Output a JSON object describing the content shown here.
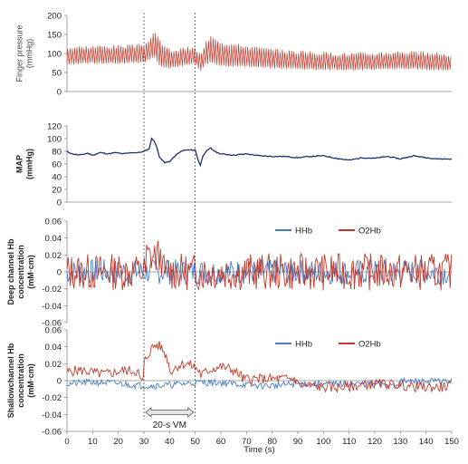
{
  "chart_data": [
    {
      "type": "line",
      "panel": "finger-pressure",
      "ylabel_lines": [
        "Finger pressure",
        "(mmHg)"
      ],
      "ylim": [
        0,
        200
      ],
      "yticks": [
        "200",
        "150",
        "100",
        "50",
        "0"
      ],
      "xlim": [
        0,
        150
      ],
      "color": "#c0392b",
      "series": [
        {
          "name": "",
          "x": [
            0,
            10,
            20,
            28,
            30,
            32,
            34,
            36,
            38,
            40,
            44,
            48,
            50,
            52,
            54,
            56,
            60,
            70,
            80,
            90,
            100,
            110,
            120,
            130,
            140,
            150
          ],
          "sys": [
            115,
            118,
            118,
            120,
            125,
            135,
            160,
            130,
            115,
            108,
            110,
            115,
            110,
            95,
            130,
            148,
            128,
            118,
            108,
            104,
            100,
            98,
            100,
            104,
            100,
            96
          ],
          "dia": [
            70,
            75,
            74,
            76,
            78,
            82,
            90,
            70,
            62,
            62,
            66,
            72,
            74,
            52,
            70,
            78,
            68,
            66,
            62,
            60,
            58,
            57,
            58,
            60,
            58,
            56
          ]
        }
      ]
    },
    {
      "type": "line",
      "panel": "map",
      "ylabel_lines": [
        "MAP",
        "(mmHg)"
      ],
      "ylim": [
        0,
        120
      ],
      "yticks": [
        "120",
        "100",
        "80",
        "60",
        "40",
        "20",
        "0"
      ],
      "xlim": [
        0,
        150
      ],
      "color": "#1f2f6e",
      "series": [
        {
          "name": "",
          "x": [
            0,
            2,
            5,
            8,
            10,
            13,
            16,
            19,
            22,
            25,
            28,
            30,
            32,
            33,
            34,
            35,
            36,
            38,
            40,
            42,
            44,
            46,
            48,
            50,
            51,
            52,
            53,
            54,
            56,
            58,
            60,
            65,
            70,
            75,
            80,
            85,
            90,
            95,
            100,
            105,
            110,
            115,
            120,
            125,
            130,
            135,
            140,
            145,
            150
          ],
          "y": [
            80,
            76,
            74,
            77,
            74,
            78,
            76,
            78,
            76,
            78,
            78,
            80,
            84,
            100,
            97,
            86,
            72,
            62,
            64,
            72,
            79,
            82,
            82,
            82,
            68,
            58,
            73,
            79,
            85,
            79,
            76,
            74,
            76,
            73,
            72,
            72,
            70,
            72,
            73,
            69,
            66,
            70,
            69,
            72,
            68,
            73,
            70,
            68,
            68
          ]
        }
      ]
    },
    {
      "type": "line",
      "panel": "deep-channel-hb",
      "ylabel_lines": [
        "Deep channel Hb",
        "concentration",
        "(mM·cm)"
      ],
      "ylim": [
        -0.06,
        0.06
      ],
      "yticks": [
        "0.06",
        "0.04",
        "0.02",
        "0",
        "-0.02",
        "-0.04",
        "-0.06"
      ],
      "xlim": [
        0,
        150
      ],
      "legend": [
        "HHb",
        "O2Hb"
      ],
      "series": [
        {
          "name": "HHb",
          "color": "#4a7cc4",
          "amp": 0.015,
          "seed": 7
        },
        {
          "name": "O2Hb",
          "color": "#c0392b",
          "amp": 0.022,
          "seed": 13
        }
      ]
    },
    {
      "type": "line",
      "panel": "shallow-channel-hb",
      "ylabel_lines": [
        "Shallowchannel Hb",
        "concentration",
        "(mM·cm)"
      ],
      "ylim": [
        -0.06,
        0.06
      ],
      "yticks": [
        "0.06",
        "0.04",
        "0.02",
        "0",
        "-0.02",
        "-0.04",
        "-0.06"
      ],
      "xlim": [
        0,
        150
      ],
      "legend": [
        "HHb",
        "O2Hb"
      ],
      "annotation": "20-s VM",
      "xlabel": "Time (s)",
      "xticks": [
        "0",
        "10",
        "20",
        "30",
        "40",
        "50",
        "60",
        "70",
        "80",
        "90",
        "100",
        "110",
        "120",
        "130",
        "140",
        "150"
      ],
      "series": [
        {
          "name": "HHb",
          "color": "#4a7cc4",
          "amp": 0.004,
          "seed": 21
        },
        {
          "name": "O2Hb",
          "color": "#c0392b",
          "amp": 0.006,
          "seed": 5
        }
      ]
    }
  ],
  "vm_markers": {
    "start": 30,
    "end": 50
  }
}
